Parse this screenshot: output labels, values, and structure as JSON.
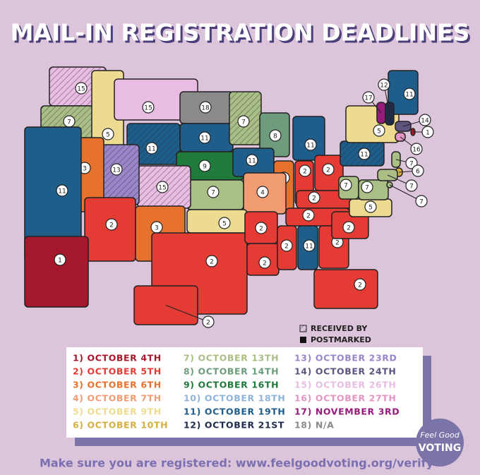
{
  "title": "MAIL-IN REGISTRATION DEADLINES",
  "map": {
    "states": [
      {
        "deadline": 15,
        "received_by": true
      },
      {
        "deadline": 7,
        "received_by": true
      },
      {
        "deadline": 5,
        "received_by": false
      },
      {
        "deadline": 15,
        "received_by": false
      },
      {
        "deadline": 11,
        "received_by": true
      },
      {
        "deadline": 18,
        "received_by": false
      },
      {
        "deadline": 11,
        "received_by": false
      },
      {
        "deadline": 9,
        "received_by": false
      },
      {
        "deadline": 7,
        "received_by": true
      },
      {
        "deadline": 8,
        "received_by": false
      },
      {
        "deadline": 11,
        "received_by": false
      },
      {
        "deadline": 11,
        "received_by": false
      },
      {
        "deadline": 3,
        "received_by": false
      },
      {
        "deadline": 2,
        "received_by": false
      },
      {
        "deadline": 2,
        "received_by": false
      },
      {
        "deadline": 2,
        "received_by": false
      },
      {
        "deadline": 2,
        "received_by": false
      },
      {
        "deadline": 4,
        "received_by": false
      },
      {
        "deadline": 7,
        "received_by": false
      },
      {
        "deadline": 15,
        "received_by": true
      },
      {
        "deadline": 13,
        "received_by": true
      },
      {
        "deadline": 3,
        "received_by": false
      },
      {
        "deadline": 11,
        "received_by": false
      },
      {
        "deadline": 2,
        "received_by": false
      },
      {
        "deadline": 3,
        "received_by": false
      },
      {
        "deadline": 5,
        "received_by": false
      },
      {
        "deadline": 2,
        "received_by": false
      },
      {
        "deadline": 2,
        "received_by": false
      },
      {
        "deadline": 2,
        "received_by": false
      },
      {
        "deadline": 2,
        "received_by": false
      },
      {
        "deadline": 11,
        "received_by": false
      },
      {
        "deadline": 2,
        "received_by": false
      },
      {
        "deadline": 2,
        "received_by": false
      },
      {
        "deadline": 2,
        "received_by": false
      },
      {
        "deadline": 5,
        "received_by": false
      },
      {
        "deadline": 7,
        "received_by": false
      },
      {
        "deadline": 7,
        "received_by": false
      },
      {
        "deadline": 11,
        "received_by": true
      },
      {
        "deadline": 5,
        "received_by": false
      },
      {
        "deadline": 11,
        "received_by": false
      },
      {
        "deadline": 17,
        "received_by": false
      },
      {
        "deadline": 12,
        "received_by": true
      },
      {
        "deadline": 14,
        "received_by": false
      },
      {
        "deadline": 1,
        "received_by": false
      },
      {
        "deadline": 16,
        "received_by": false
      },
      {
        "deadline": 7,
        "received_by": false
      },
      {
        "deadline": 6,
        "received_by": false
      },
      {
        "deadline": 7,
        "received_by": false
      },
      {
        "deadline": 7,
        "received_by": false
      },
      {
        "deadline": 1,
        "received_by": false
      },
      {
        "deadline": 2,
        "received_by": false
      }
    ]
  },
  "key": {
    "received": "RECEIVED BY",
    "postmarked": "POSTMARKED"
  },
  "legend": [
    {
      "label": "1) OCTOBER 4TH",
      "color": "#a3192b"
    },
    {
      "label": "2) OCTOBER 5TH",
      "color": "#e43c34"
    },
    {
      "label": "3) OCTOBER 6TH",
      "color": "#e6722e"
    },
    {
      "label": "4) OCTOBER 7TH",
      "color": "#f09b72"
    },
    {
      "label": "5) OCTOBER 9TH",
      "color": "#eedb92"
    },
    {
      "label": "6) OCTOBER 10TH",
      "color": "#d4b042"
    },
    {
      "label": "7) OCTOBER 13TH",
      "color": "#aabf86"
    },
    {
      "label": "8) OCTOBER 14TH",
      "color": "#6d9c7c"
    },
    {
      "label": "9) OCTOBER 16TH",
      "color": "#1f7a3b"
    },
    {
      "label": "10) OCTOBER 18TH",
      "color": "#8fb3d9"
    },
    {
      "label": "11) OCTOBER 19TH",
      "color": "#1f5d8a"
    },
    {
      "label": "12) OCTOBER 21ST",
      "color": "#1e2b4a"
    },
    {
      "label": "13) OCTOBER 23RD",
      "color": "#9b86c9"
    },
    {
      "label": "14) OCTOBER 24TH",
      "color": "#5f5380"
    },
    {
      "label": "15) OCTOBER 26TH",
      "color": "#e9bde3"
    },
    {
      "label": "16) OCTOBER 27TH",
      "color": "#e494c4"
    },
    {
      "label": "17) NOVEMBER 3RD",
      "color": "#981b7c"
    },
    {
      "label": "18) N/A",
      "color": "#8a8a8a"
    }
  ],
  "footer": "Make sure you are registered: www.feelgoodvoting.org/verify",
  "logo": {
    "top": "Feel Good",
    "bottom": "VOTING"
  }
}
